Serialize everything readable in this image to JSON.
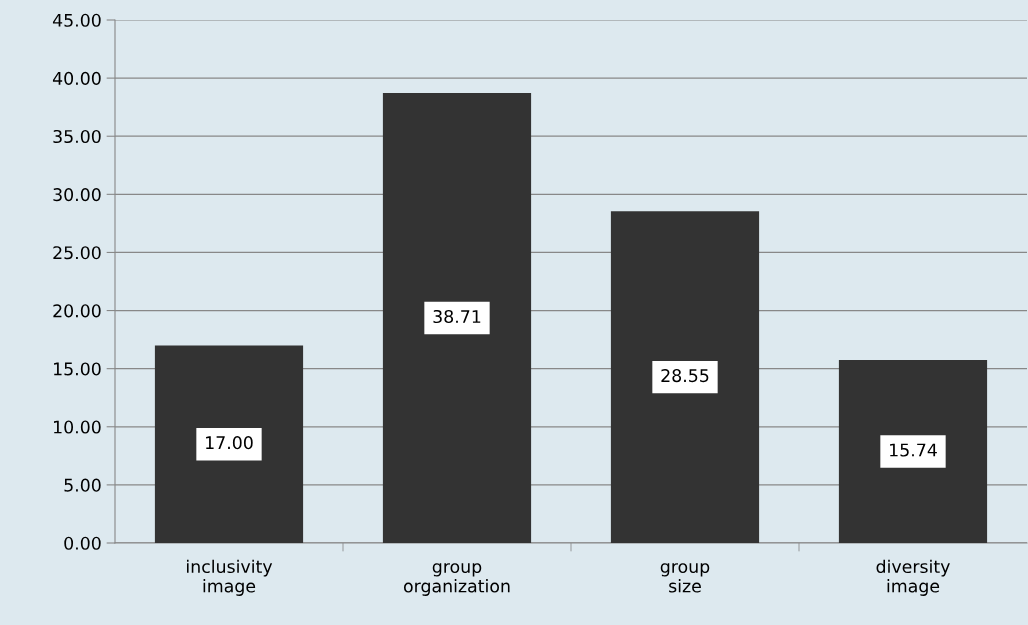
{
  "chart_data": {
    "type": "bar",
    "categories": [
      "inclusivity\nimage",
      "group\norganization",
      "group\nsize",
      "diversity\nimage"
    ],
    "values": [
      17.0,
      38.71,
      28.55,
      15.74
    ],
    "value_labels": [
      "17.00",
      "38.71",
      "28.55",
      "15.74"
    ],
    "color": "#333333",
    "ylim": [
      0,
      45
    ],
    "yticks": [
      {
        "value": 0,
        "label": "0.00"
      },
      {
        "value": 5,
        "label": "5.00"
      },
      {
        "value": 10,
        "label": "10.00"
      },
      {
        "value": 15,
        "label": "15.00"
      },
      {
        "value": 20,
        "label": "20.00"
      },
      {
        "value": 25,
        "label": "25.00"
      },
      {
        "value": 30,
        "label": "30.00"
      },
      {
        "value": 35,
        "label": "35.00"
      },
      {
        "value": 40,
        "label": "40.00"
      },
      {
        "value": 45,
        "label": "45.00"
      }
    ],
    "grid": "y",
    "legend": false
  }
}
